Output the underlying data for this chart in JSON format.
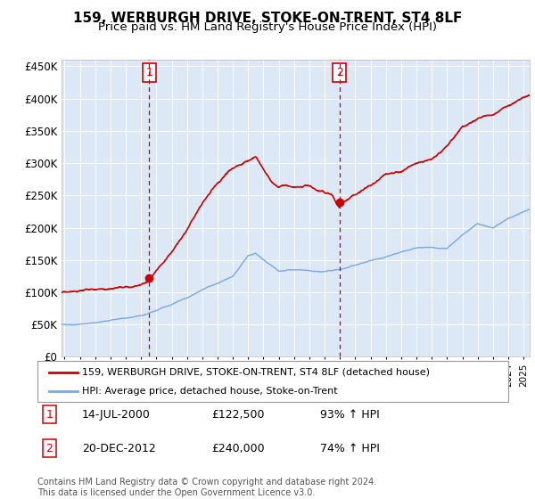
{
  "title": "159, WERBURGH DRIVE, STOKE-ON-TRENT, ST4 8LF",
  "subtitle": "Price paid vs. HM Land Registry's House Price Index (HPI)",
  "ylabel_ticks": [
    "£0",
    "£50K",
    "£100K",
    "£150K",
    "£200K",
    "£250K",
    "£300K",
    "£350K",
    "£400K",
    "£450K"
  ],
  "ytick_values": [
    0,
    50000,
    100000,
    150000,
    200000,
    250000,
    300000,
    350000,
    400000,
    450000
  ],
  "ylim": [
    0,
    460000
  ],
  "xlim_start": 1994.8,
  "xlim_end": 2025.4,
  "purchase1_x": 2000.54,
  "purchase1_price": 122500,
  "purchase2_x": 2012.97,
  "purchase2_price": 240000,
  "legend_red": "159, WERBURGH DRIVE, STOKE-ON-TRENT, ST4 8LF (detached house)",
  "legend_blue": "HPI: Average price, detached house, Stoke-on-Trent",
  "anno1_date": "14-JUL-2000",
  "anno1_price": "£122,500",
  "anno1_hpi": "93% ↑ HPI",
  "anno2_date": "20-DEC-2012",
  "anno2_price": "£240,000",
  "anno2_hpi": "74% ↑ HPI",
  "footer": "Contains HM Land Registry data © Crown copyright and database right 2024.\nThis data is licensed under the Open Government Licence v3.0.",
  "red_color": "#cc0000",
  "blue_color": "#7aaadd",
  "background_color": "#dce8f5",
  "title_fontsize": 11,
  "subtitle_fontsize": 9.5
}
